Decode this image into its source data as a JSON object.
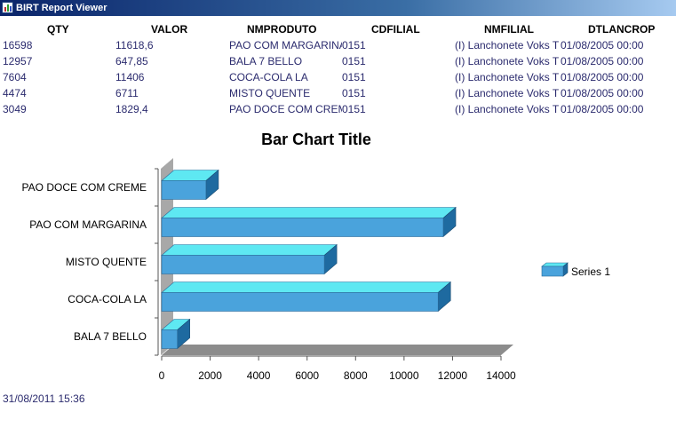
{
  "window": {
    "title": "BIRT Report Viewer",
    "icon": "report-chart-icon"
  },
  "table": {
    "columns": [
      "QTY",
      "VALOR",
      "NMPRODUTO",
      "CDFILIAL",
      "NMFILIAL",
      "DTLANCROP"
    ],
    "rows": [
      [
        "16598",
        "11618,6",
        "PAO COM MARGARINA",
        "0151",
        "(I) Lanchonete Voks T",
        "01/08/2005 00:00"
      ],
      [
        "12957",
        "647,85",
        "BALA 7 BELLO",
        "0151",
        "(I) Lanchonete Voks T",
        "01/08/2005 00:00"
      ],
      [
        "7604",
        "11406",
        "COCA-COLA LA",
        "0151",
        "(I) Lanchonete Voks T",
        "01/08/2005 00:00"
      ],
      [
        "4474",
        "6711",
        "MISTO QUENTE",
        "0151",
        "(I) Lanchonete Voks T",
        "01/08/2005 00:00"
      ],
      [
        "3049",
        "1829,4",
        "PAO DOCE COM CREME",
        "0151",
        "(I) Lanchonete Voks T",
        "01/08/2005 00:00"
      ]
    ]
  },
  "chart_data": {
    "type": "bar",
    "orientation": "horizontal",
    "style": "3d",
    "title": "Bar Chart Title",
    "categories": [
      "PAO DOCE COM CREME",
      "PAO COM MARGARINA",
      "MISTO QUENTE",
      "COCA-COLA LA",
      "BALA 7 BELLO"
    ],
    "series": [
      {
        "name": "Series 1",
        "values": [
          1829.4,
          11618.6,
          6711,
          11406,
          647.85
        ]
      }
    ],
    "xlim": [
      0,
      14000
    ],
    "xticks": [
      "0",
      "2000",
      "4000",
      "6000",
      "8000",
      "10000",
      "12000",
      "14000"
    ],
    "legend": "right",
    "colors": {
      "bar_front": "#4aa3dc",
      "bar_top": "#5ee8f2",
      "bar_side": "#1e6aa0",
      "wall": "#a8a8a8",
      "floor": "#8c8c8c"
    }
  },
  "footer": {
    "timestamp": "31/08/2011 15:36"
  }
}
